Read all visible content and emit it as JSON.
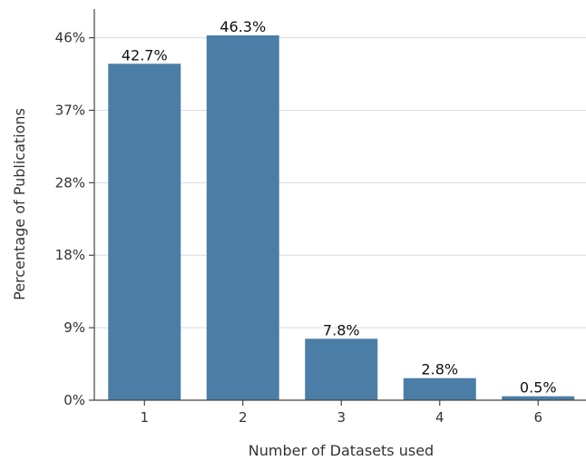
{
  "chart_data": {
    "type": "bar",
    "categories": [
      "1",
      "2",
      "3",
      "4",
      "6"
    ],
    "values": [
      42.7,
      46.3,
      7.8,
      2.8,
      0.5
    ],
    "value_labels": [
      "42.7%",
      "46.3%",
      "7.8%",
      "2.8%",
      "0.5%"
    ],
    "title": "",
    "xlabel": "Number of Datasets used",
    "ylabel": "Percentage of Publications",
    "yticks": [
      0,
      9.2,
      18.4,
      27.6,
      36.8,
      46.0
    ],
    "ytick_labels": [
      "0%",
      "9%",
      "18%",
      "28%",
      "37%",
      "46%"
    ],
    "ylim": [
      0,
      46.3
    ],
    "grid": "horizontal",
    "legend": "none",
    "bar_color": "#4a7ea6"
  }
}
